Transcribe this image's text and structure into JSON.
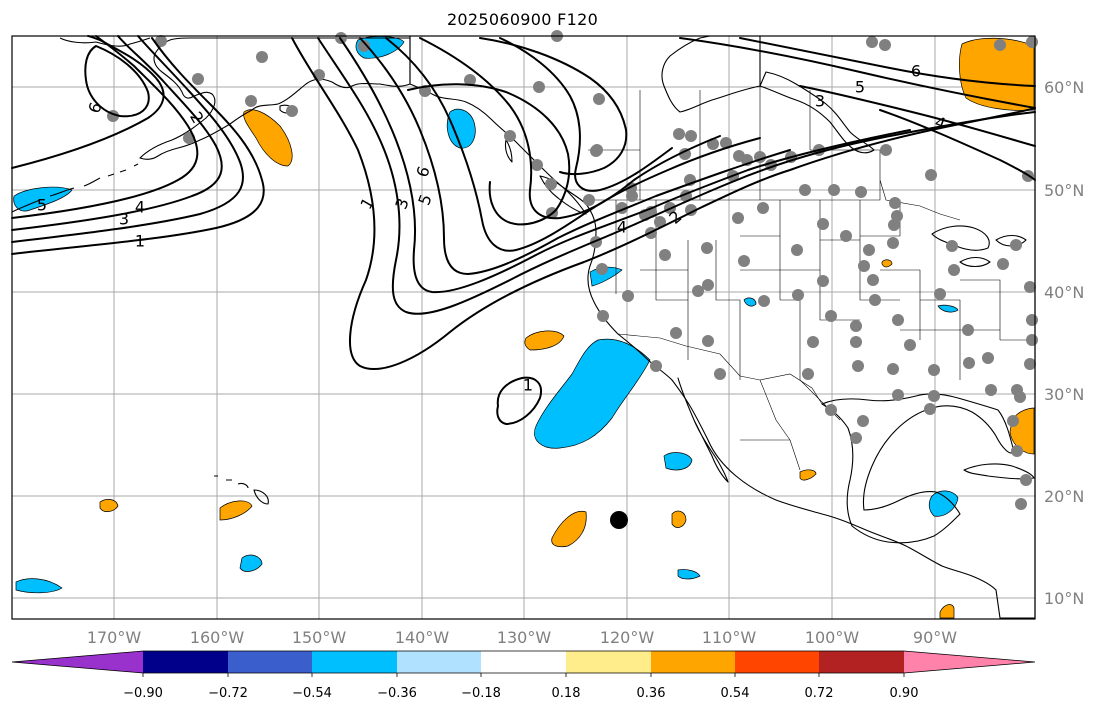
{
  "title": "2025060900 F120",
  "map": {
    "lon_ticks": [
      "170°W",
      "160°W",
      "150°W",
      "140°W",
      "130°W",
      "120°W",
      "110°W",
      "100°W",
      "90°W"
    ],
    "lat_ticks": [
      "60°N",
      "50°N",
      "40°N",
      "30°N",
      "20°N",
      "10°N"
    ],
    "contour_labels": [
      "6",
      "5",
      "4",
      "3",
      "1",
      "2",
      "1",
      "3",
      "5",
      "6",
      "4",
      "2",
      "1",
      "3",
      "5",
      "6",
      "4"
    ],
    "colors": {
      "negative_fill": "#00bfff",
      "positive_fill": "#ffa500",
      "station_dot": "#808080",
      "marker": "#000000",
      "contour": "#000000",
      "gridline": "#a8a8a8"
    },
    "marker_name": "black-dot-marker"
  },
  "colorbar": {
    "colors": [
      "#9932cc",
      "#00008b",
      "#3a5fcd",
      "#00bfff",
      "#b0e2ff",
      "#ffffff",
      "#ffec8b",
      "#ffa500",
      "#ff4500",
      "#b22222",
      "#ff82ab"
    ],
    "tick_labels": [
      "−0.90",
      "−0.72",
      "−0.54",
      "−0.36",
      "−0.18",
      "0.18",
      "0.36",
      "0.54",
      "0.72",
      "0.90"
    ]
  }
}
